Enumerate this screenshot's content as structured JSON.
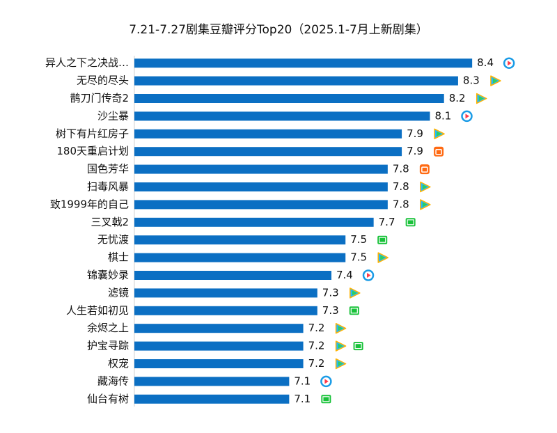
{
  "chart_data": {
    "type": "bar",
    "orientation": "horizontal",
    "title": "7.21-7.27剧集豆瓣评分Top20（2025.1-7月上新剧集）",
    "categories": [
      "异人之下之决战…",
      "无尽的尽头",
      "鹊刀门传奇2",
      "沙尘暴",
      "树下有片红房子",
      "180天重启计划",
      "国色芳华",
      "扫毒风暴",
      "致1999年的自己",
      "三叉戟2",
      "无忧渡",
      "棋士",
      "锦囊妙录",
      "滤镜",
      "人生若如初见",
      "余烬之上",
      "护宝寻踪",
      "权宠",
      "藏海传",
      "仙台有树"
    ],
    "values": [
      8.4,
      8.3,
      8.2,
      8.1,
      7.9,
      7.9,
      7.8,
      7.8,
      7.8,
      7.7,
      7.5,
      7.5,
      7.4,
      7.3,
      7.3,
      7.2,
      7.2,
      7.2,
      7.1,
      7.1
    ],
    "color": "#0b6fc3",
    "xlim": [
      6,
      8.8
    ]
  }
}
